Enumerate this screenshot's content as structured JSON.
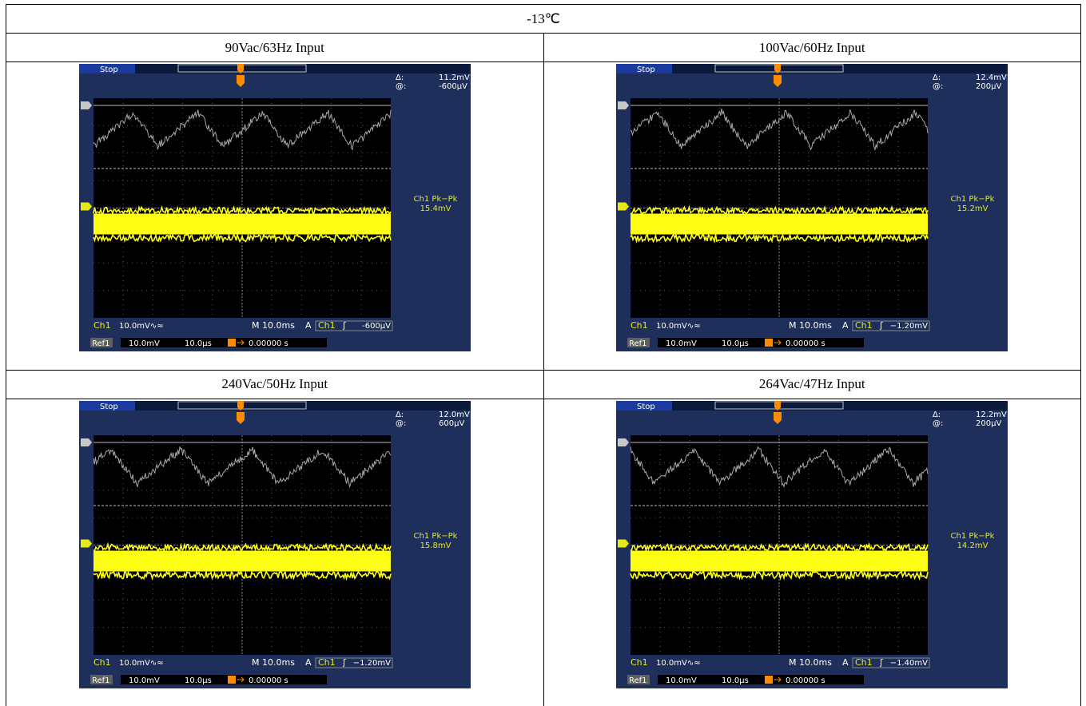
{
  "title": "-13℃",
  "colors": {
    "screen": "#000000",
    "frame": "#1d2f5a",
    "ch1_trace": "#ffff14",
    "ref_trace": "#a8a8a8",
    "readout_text": "#ffffff",
    "ch1_label": "#e8e817",
    "trigger_marker": "#ff8c00"
  },
  "panels": [
    {
      "label": "90Vac/63Hz Input",
      "status": "Stop",
      "delta_label": "Δ:",
      "delta_value": "11.2mV",
      "at_label": "@:",
      "at_value": "-600μV",
      "meas_name": "Ch1 Pk−Pk",
      "meas_value": "15.4mV",
      "ch1_label": "Ch1",
      "ch1_scale": "10.0mV∿≈",
      "timebase": "M 10.0ms",
      "trigger_mode": "A",
      "trigger_src": "Ch1",
      "trigger_slope": "ʃ",
      "trigger_level": "-600μV",
      "ref_label": "Ref1",
      "ref_scale": "10.0mV",
      "ref_time": "10.0μs",
      "ref_pos": "0.00000 s"
    },
    {
      "label": "100Vac/60Hz Input",
      "status": "Stop",
      "delta_label": "Δ:",
      "delta_value": "12.4mV",
      "at_label": "@:",
      "at_value": "200μV",
      "meas_name": "Ch1 Pk−Pk",
      "meas_value": "15.2mV",
      "ch1_label": "Ch1",
      "ch1_scale": "10.0mV∿≈",
      "timebase": "M 10.0ms",
      "trigger_mode": "A",
      "trigger_src": "Ch1",
      "trigger_slope": "ʃ",
      "trigger_level": "−1.20mV",
      "ref_label": "Ref1",
      "ref_scale": "10.0mV",
      "ref_time": "10.0μs",
      "ref_pos": "0.00000 s"
    },
    {
      "label": "240Vac/50Hz Input",
      "status": "Stop",
      "delta_label": "Δ:",
      "delta_value": "12.0mV",
      "at_label": "@:",
      "at_value": "600μV",
      "meas_name": "Ch1 Pk−Pk",
      "meas_value": "15.8mV",
      "ch1_label": "Ch1",
      "ch1_scale": "10.0mV∿≈",
      "timebase": "M 10.0ms",
      "trigger_mode": "A",
      "trigger_src": "Ch1",
      "trigger_slope": "ʃ",
      "trigger_level": "−1.20mV",
      "ref_label": "Ref1",
      "ref_scale": "10.0mV",
      "ref_time": "10.0μs",
      "ref_pos": "0.00000 s"
    },
    {
      "label": "264Vac/47Hz Input",
      "status": "Stop",
      "delta_label": "Δ:",
      "delta_value": "12.2mV",
      "at_label": "@:",
      "at_value": "200μV",
      "meas_name": "Ch1 Pk−Pk",
      "meas_value": "14.2mV",
      "ch1_label": "Ch1",
      "ch1_scale": "10.0mV∿≈",
      "timebase": "M 10.0ms",
      "trigger_mode": "A",
      "trigger_src": "Ch1",
      "trigger_slope": "ʃ",
      "trigger_level": "−1.40mV",
      "ref_label": "Ref1",
      "ref_scale": "10.0mV",
      "ref_time": "10.0μs",
      "ref_pos": "0.00000 s"
    }
  ]
}
